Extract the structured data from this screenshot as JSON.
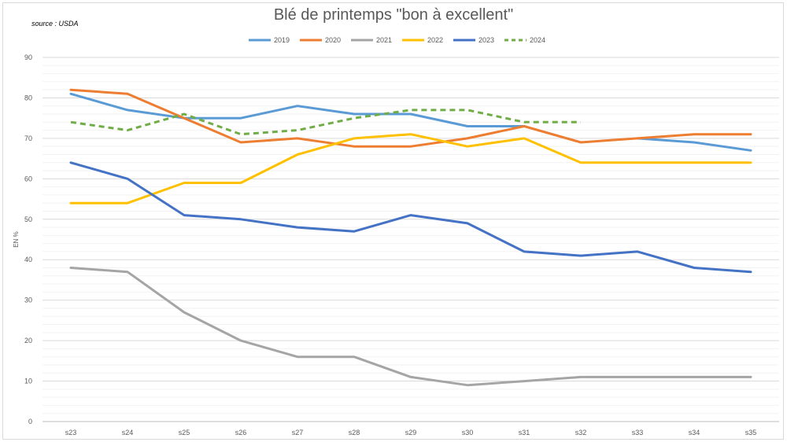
{
  "source": "source : USDA",
  "chart_data": {
    "type": "line",
    "title": "Blé de printemps \"bon à excellent\"",
    "xlabel": "",
    "ylabel": "EN %",
    "ylim": [
      0,
      90
    ],
    "yticks": [
      0,
      10,
      20,
      30,
      40,
      50,
      60,
      70,
      80,
      90
    ],
    "grid": true,
    "legend_position": "top",
    "categories": [
      "s23",
      "s24",
      "s25",
      "s26",
      "s27",
      "s28",
      "s29",
      "s30",
      "s31",
      "s32",
      "s33",
      "s34",
      "s35"
    ],
    "series": [
      {
        "name": "2019",
        "color": "#5b9bd5",
        "dashed": false,
        "values": [
          81,
          77,
          75,
          75,
          78,
          76,
          76,
          73,
          73,
          null,
          70,
          69,
          67
        ]
      },
      {
        "name": "2020",
        "color": "#ed7d31",
        "dashed": false,
        "values": [
          82,
          81,
          75,
          69,
          70,
          68,
          68,
          70,
          73,
          69,
          70,
          71,
          71
        ]
      },
      {
        "name": "2021",
        "color": "#a5a5a5",
        "dashed": false,
        "values": [
          38,
          37,
          27,
          20,
          16,
          16,
          11,
          9,
          10,
          11,
          11,
          11,
          11
        ]
      },
      {
        "name": "2022",
        "color": "#ffc000",
        "dashed": false,
        "values": [
          54,
          54,
          59,
          59,
          66,
          70,
          71,
          68,
          70,
          64,
          64,
          64,
          64
        ]
      },
      {
        "name": "2023",
        "color": "#4472c4",
        "dashed": false,
        "values": [
          64,
          60,
          51,
          50,
          48,
          47,
          51,
          49,
          42,
          41,
          42,
          38,
          37
        ]
      },
      {
        "name": "2024",
        "color": "#70ad47",
        "dashed": true,
        "values": [
          74,
          72,
          76,
          71,
          72,
          75,
          77,
          77,
          74,
          74,
          null,
          null,
          null
        ]
      }
    ]
  }
}
